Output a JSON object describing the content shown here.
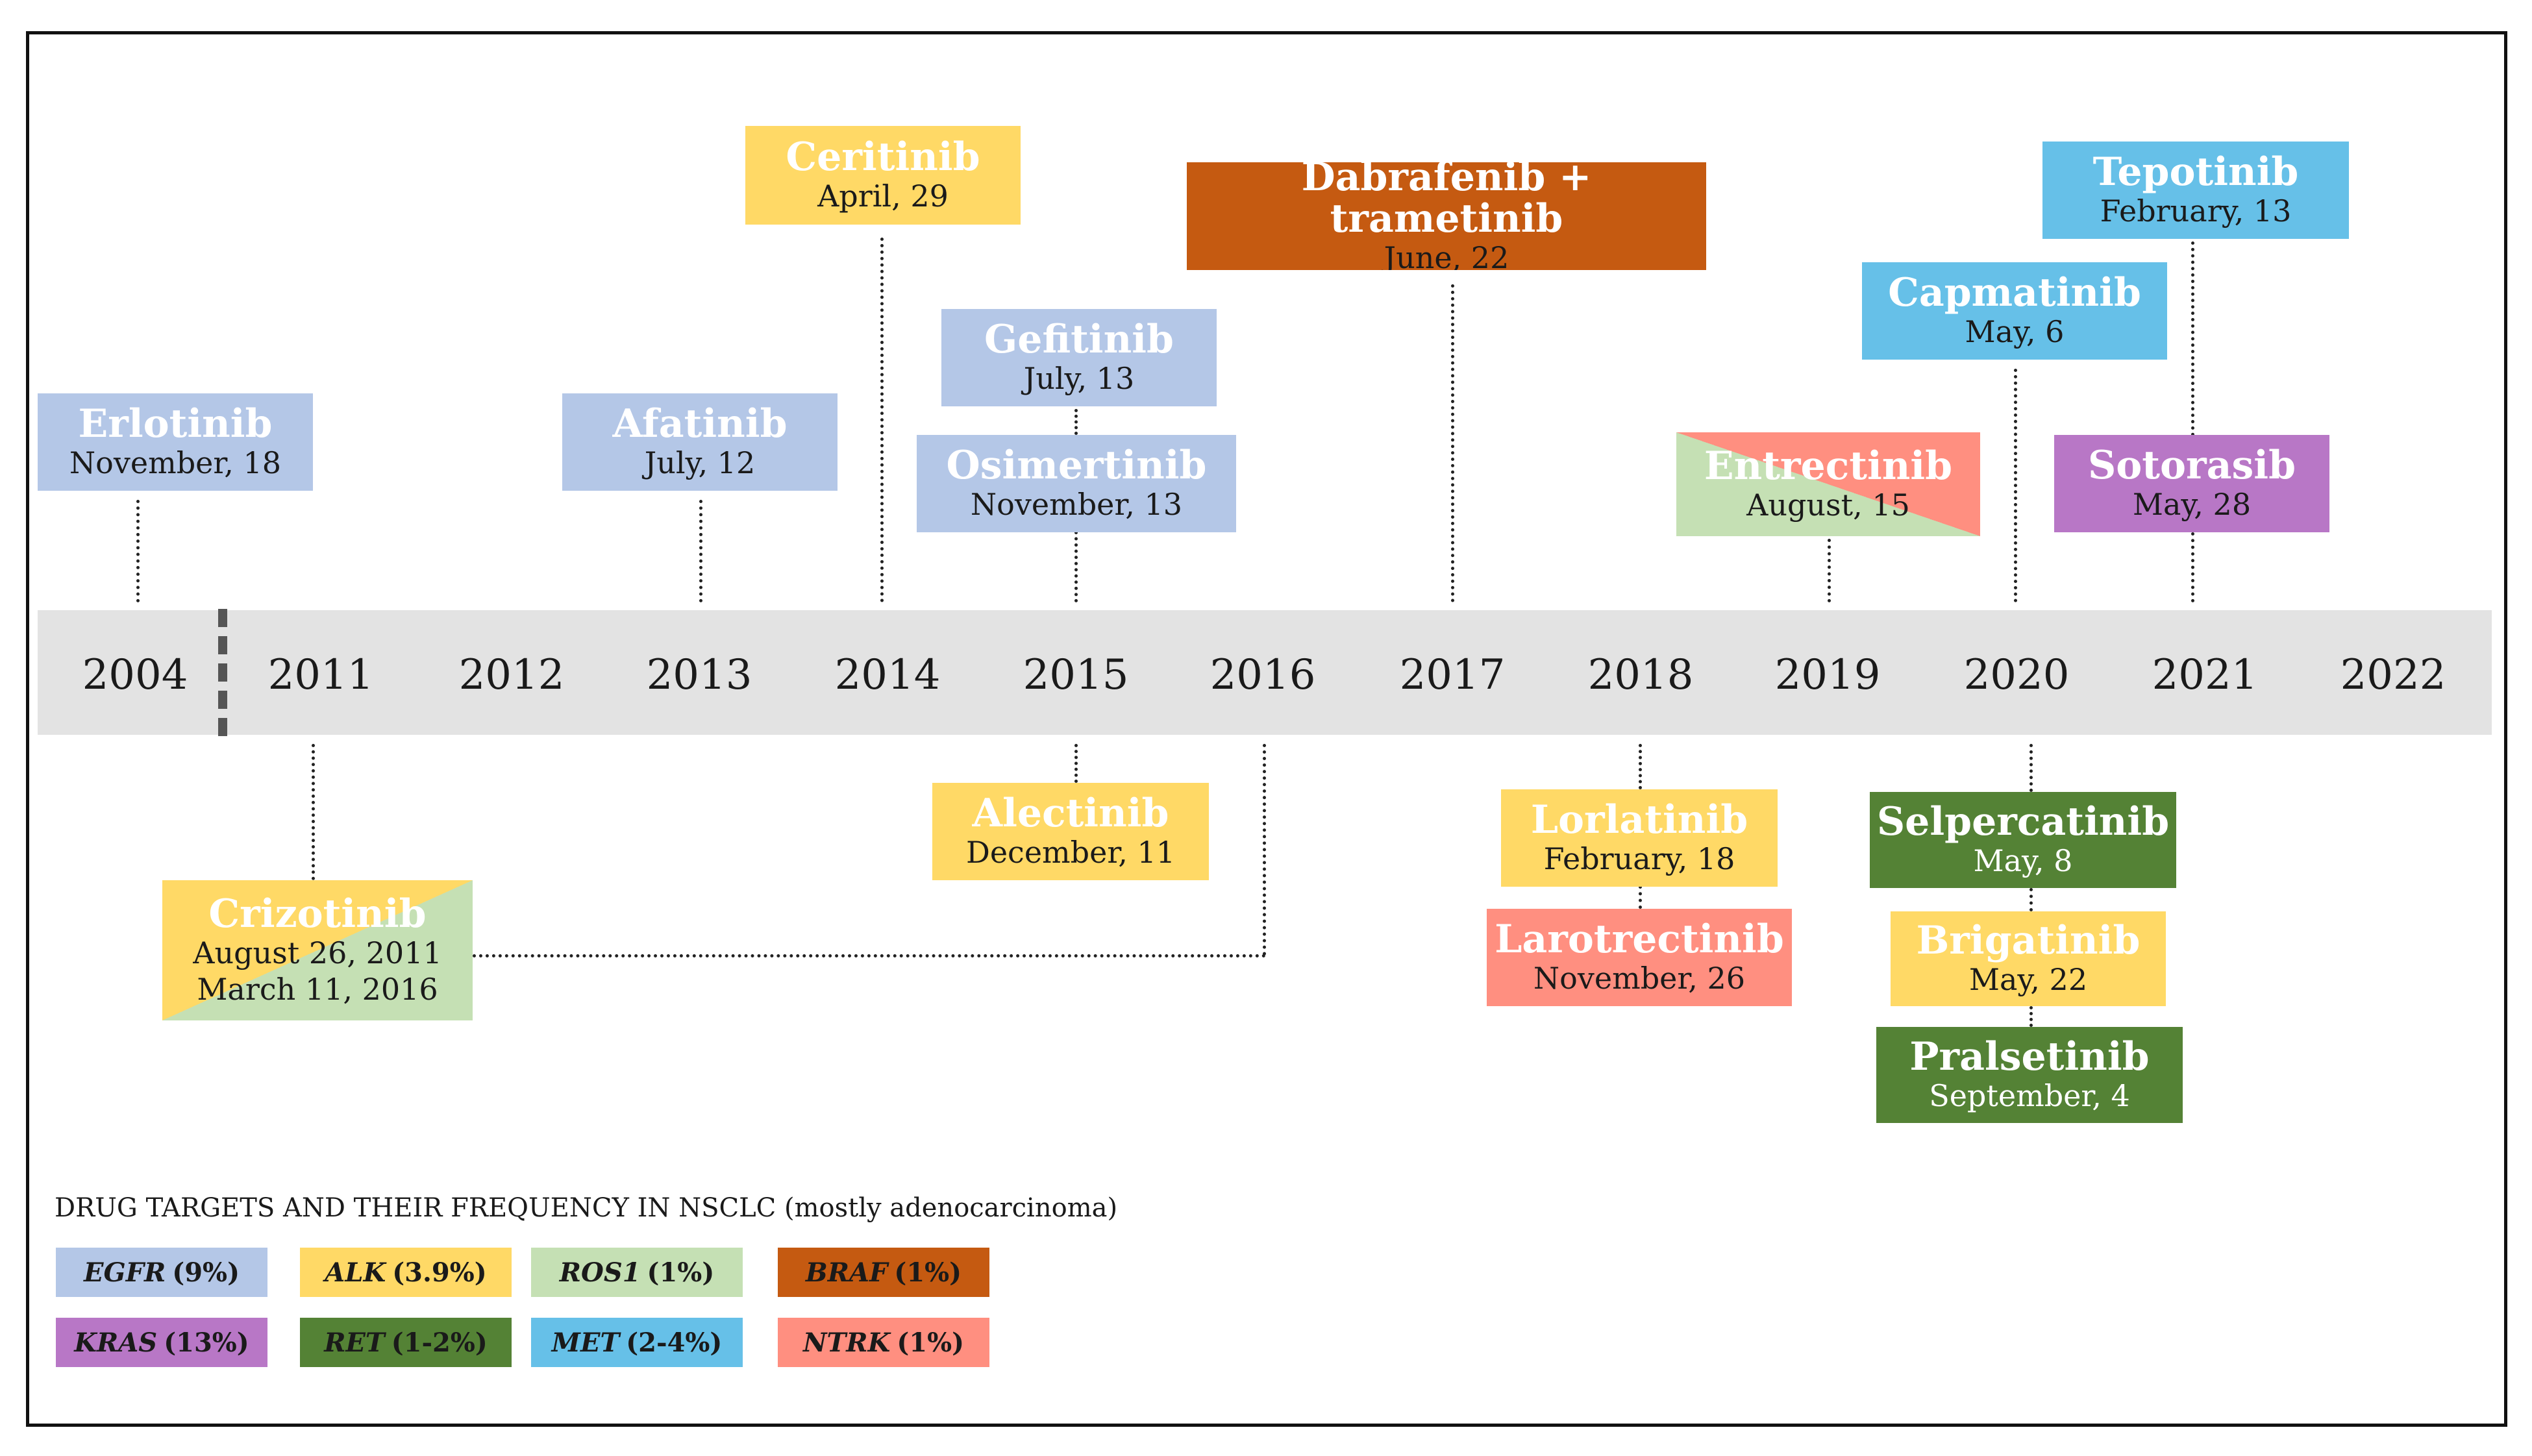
{
  "colors": {
    "EGFR": "#b4c7e7",
    "ALK": "#ffd966",
    "ROS1": "#c5e0b4",
    "BRAF": "#c55a11",
    "KRAS": "#b877c6",
    "RET": "#548235",
    "MET": "#66c0e8",
    "NTRK": "#ff8f80"
  },
  "years": [
    "2004",
    "2011",
    "2012",
    "2013",
    "2014",
    "2015",
    "2016",
    "2017",
    "2018",
    "2019",
    "2020",
    "2021",
    "2022"
  ],
  "drugs": {
    "erlotinib": {
      "name": "Erlotinib",
      "date": "November, 18"
    },
    "afatinib": {
      "name": "Afatinib",
      "date": "July, 12"
    },
    "ceritinib": {
      "name": "Ceritinib",
      "date": "April, 29"
    },
    "gefitinib": {
      "name": "Gefitinib",
      "date": "July, 13"
    },
    "osimertinib": {
      "name": "Osimertinib",
      "date": "November, 13"
    },
    "dabrafenib": {
      "name": "Dabrafenib + trametinib",
      "date": "June, 22"
    },
    "entrectinib": {
      "name": "Entrectinib",
      "date": "August, 15"
    },
    "capmatinib": {
      "name": "Capmatinib",
      "date": "May, 6"
    },
    "tepotinib": {
      "name": "Tepotinib",
      "date": "February, 13"
    },
    "sotorasib": {
      "name": "Sotorasib",
      "date": "May, 28"
    },
    "crizotinib": {
      "name": "Crizotinib",
      "date": "August 26, 2011",
      "date2": "March 11, 2016"
    },
    "alectinib": {
      "name": "Alectinib",
      "date": "December, 11"
    },
    "lorlatinib": {
      "name": "Lorlatinib",
      "date": "February, 18"
    },
    "larotrectinib": {
      "name": "Larotrectinib",
      "date": "November, 26"
    },
    "selpercatinib": {
      "name": "Selpercatinib",
      "date": "May, 8"
    },
    "brigatinib": {
      "name": "Brigatinib",
      "date": "May, 22"
    },
    "pralsetinib": {
      "name": "Pralsetinib",
      "date": "September, 4"
    }
  },
  "legend": {
    "title": "DRUG TARGETS AND THEIR FREQUENCY IN NSCLC (mostly adenocarcinoma)",
    "items": [
      {
        "gene": "EGFR",
        "freq": "(9%)"
      },
      {
        "gene": "ALK",
        "freq": "(3.9%)"
      },
      {
        "gene": "ROS1",
        "freq": "(1%)"
      },
      {
        "gene": "BRAF",
        "freq": "(1%)"
      },
      {
        "gene": "KRAS",
        "freq": "(13%)"
      },
      {
        "gene": "RET",
        "freq": "(1-2%)"
      },
      {
        "gene": "MET",
        "freq": "(2-4%)"
      },
      {
        "gene": "NTRK",
        "freq": "(1%)"
      }
    ]
  }
}
